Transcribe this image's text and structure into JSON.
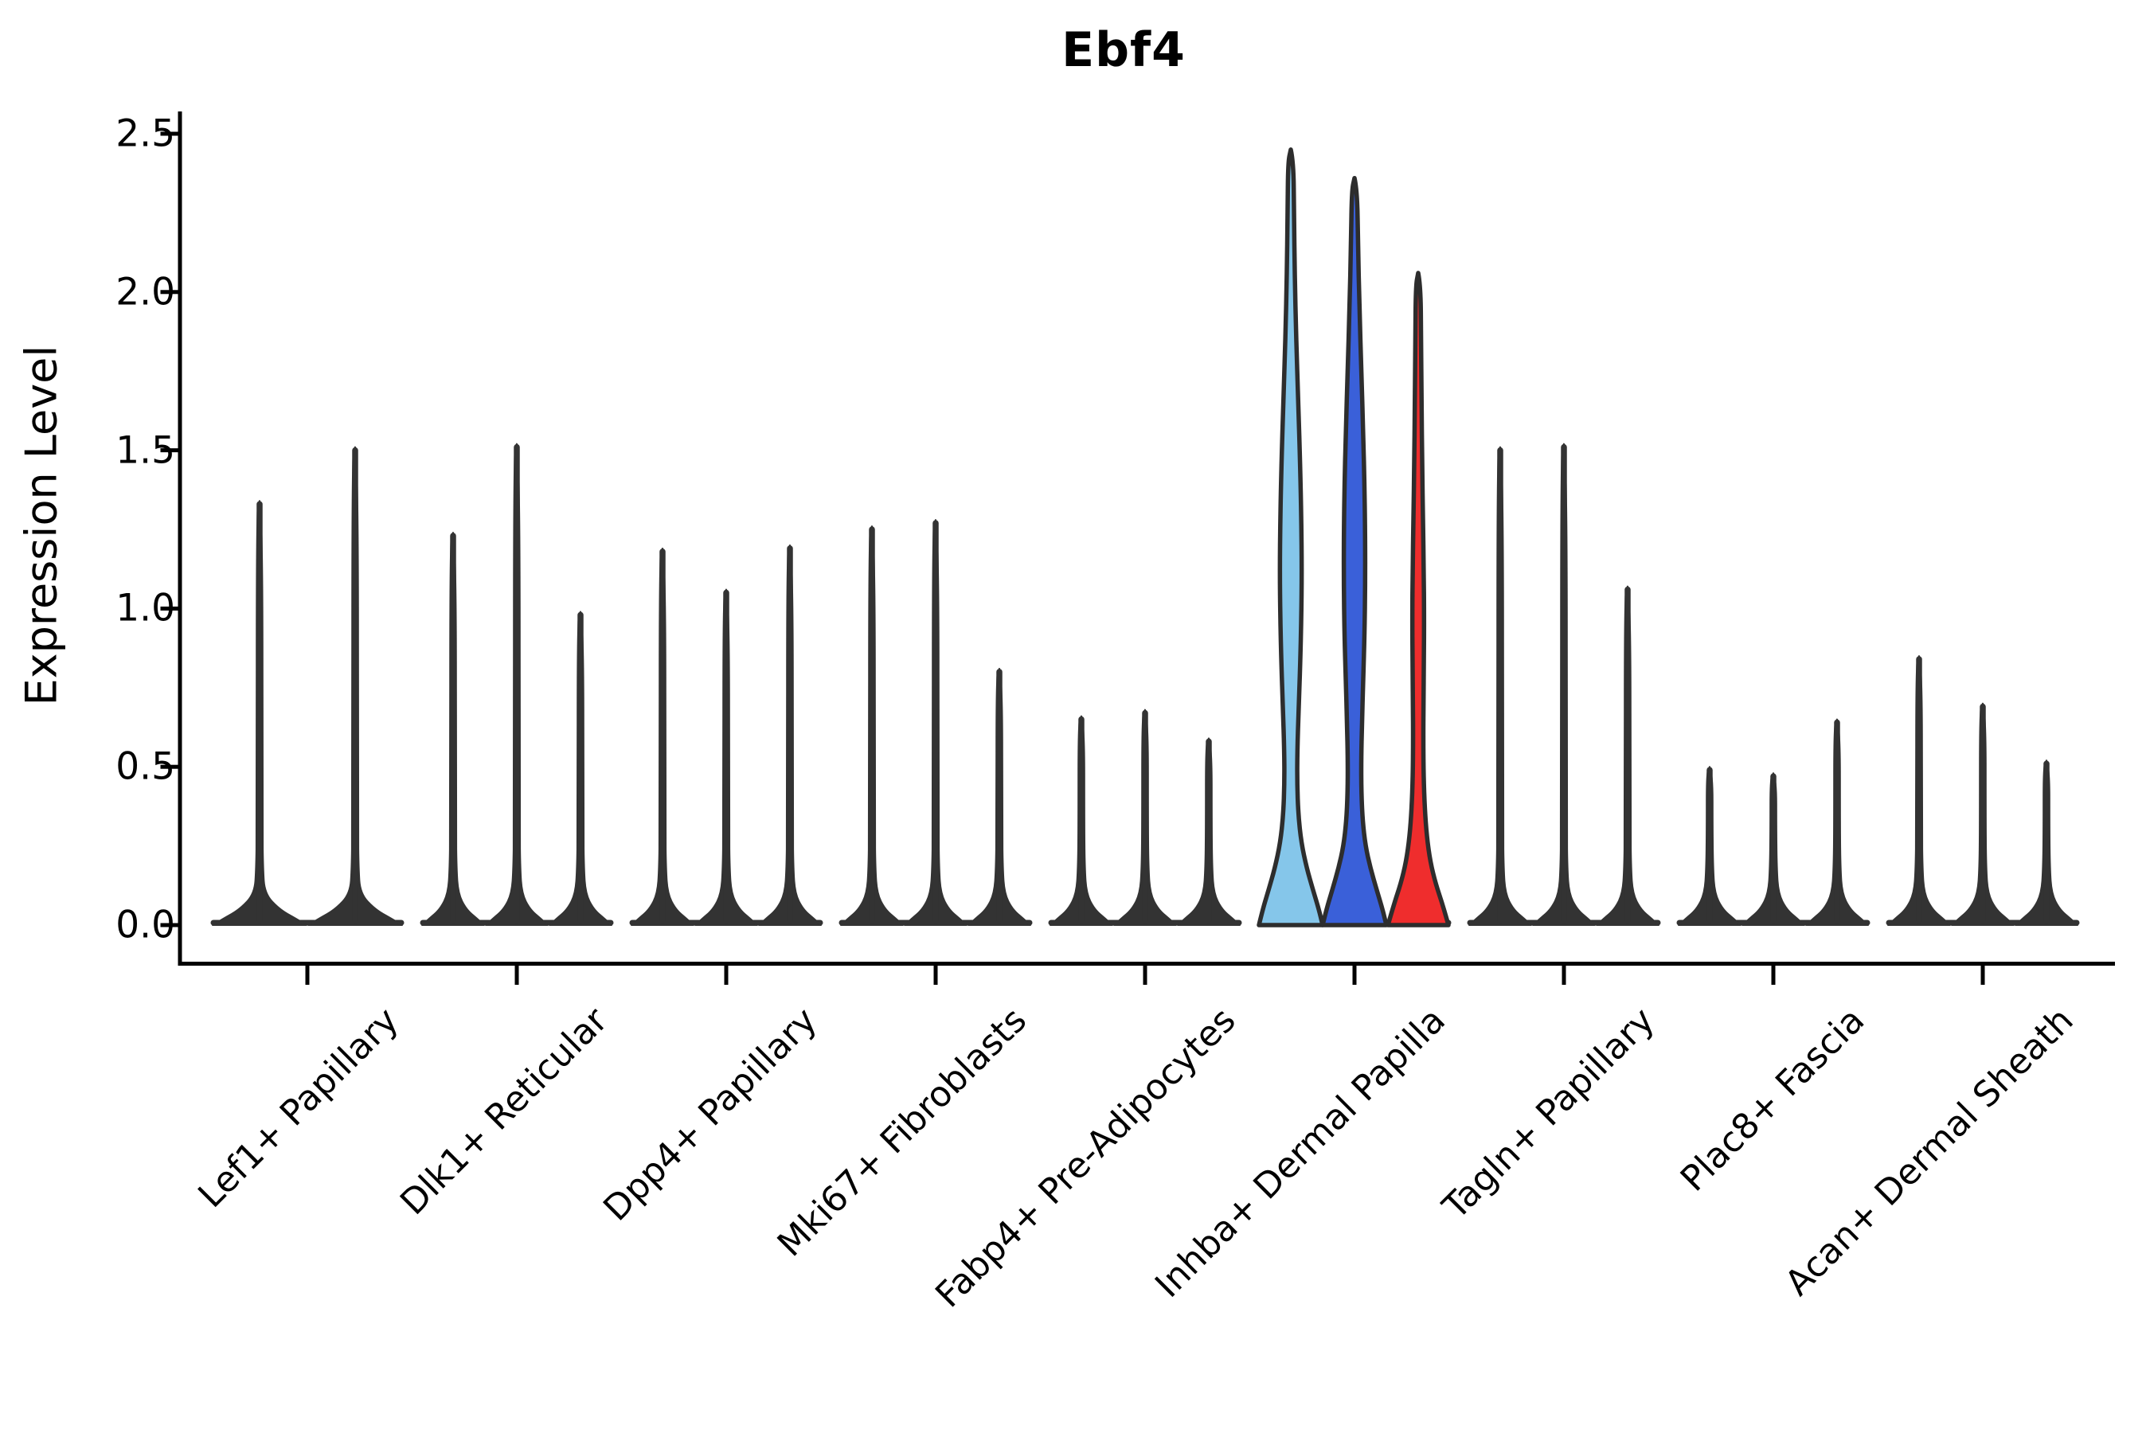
{
  "chart_data": {
    "type": "violin",
    "title": "Ebf4",
    "xlabel": "",
    "ylabel": "Expression Level",
    "ylim": [
      0,
      2.5
    ],
    "yticks": [
      "0.0",
      "0.5",
      "1.0",
      "1.5",
      "2.0",
      "2.5"
    ],
    "grid": false,
    "legend": "none",
    "categories": [
      "Lef1+ Papillary",
      "Dlk1+ Reticular",
      "Dpp4+ Papillary",
      "Mki67+ Fibroblasts",
      "Fabp4+ Pre-Adipocytes",
      "Inhba+ Dermal Papilla",
      "Tagln+ Papillary",
      "Plac8+ Fascia",
      "Acan+ Dermal Sheath"
    ],
    "groups": [
      {
        "category": "Lef1+ Papillary",
        "violins": [
          {
            "max": 1.34
          },
          {
            "max": 1.51
          }
        ]
      },
      {
        "category": "Dlk1+ Reticular",
        "violins": [
          {
            "max": 1.24
          },
          {
            "max": 1.52
          },
          {
            "max": 0.99
          }
        ]
      },
      {
        "category": "Dpp4+ Papillary",
        "violins": [
          {
            "max": 1.19
          },
          {
            "max": 1.06
          },
          {
            "max": 1.2
          }
        ]
      },
      {
        "category": "Mki67+ Fibroblasts",
        "violins": [
          {
            "max": 1.26
          },
          {
            "max": 1.28
          },
          {
            "max": 0.81
          }
        ]
      },
      {
        "category": "Fabp4+ Pre-Adipocytes",
        "violins": [
          {
            "max": 0.66
          },
          {
            "max": 0.68
          },
          {
            "max": 0.59
          }
        ]
      },
      {
        "category": "Inhba+ Dermal Papilla",
        "violins": [
          {
            "max": 2.45,
            "fill": "#85C6EA",
            "shape": [
              [
                2.45,
                0
              ],
              [
                2.41,
                0.085
              ],
              [
                2.25,
                0.1
              ],
              [
                2.05,
                0.125
              ],
              [
                1.85,
                0.17
              ],
              [
                1.65,
                0.235
              ],
              [
                1.45,
                0.295
              ],
              [
                1.28,
                0.33
              ],
              [
                1.12,
                0.345
              ],
              [
                0.97,
                0.33
              ],
              [
                0.82,
                0.295
              ],
              [
                0.68,
                0.245
              ],
              [
                0.55,
                0.205
              ],
              [
                0.45,
                0.2
              ],
              [
                0.35,
                0.235
              ],
              [
                0.26,
                0.33
              ],
              [
                0.18,
                0.5
              ],
              [
                0.11,
                0.7
              ],
              [
                0.05,
                0.88
              ],
              [
                0,
                1.0
              ]
            ]
          },
          {
            "max": 2.36,
            "fill": "#3A60D9",
            "shape": [
              [
                2.36,
                0
              ],
              [
                2.32,
                0.085
              ],
              [
                2.15,
                0.11
              ],
              [
                1.95,
                0.155
              ],
              [
                1.75,
                0.215
              ],
              [
                1.55,
                0.275
              ],
              [
                1.38,
                0.315
              ],
              [
                1.22,
                0.335
              ],
              [
                1.07,
                0.335
              ],
              [
                0.92,
                0.315
              ],
              [
                0.78,
                0.275
              ],
              [
                0.64,
                0.235
              ],
              [
                0.52,
                0.21
              ],
              [
                0.42,
                0.215
              ],
              [
                0.33,
                0.255
              ],
              [
                0.25,
                0.345
              ],
              [
                0.18,
                0.5
              ],
              [
                0.11,
                0.7
              ],
              [
                0.05,
                0.88
              ],
              [
                0,
                1.0
              ]
            ]
          },
          {
            "max": 2.06,
            "fill": "#EF2D2D",
            "shape": [
              [
                2.06,
                0
              ],
              [
                2.02,
                0.075
              ],
              [
                1.85,
                0.09
              ],
              [
                1.65,
                0.105
              ],
              [
                1.45,
                0.125
              ],
              [
                1.28,
                0.15
              ],
              [
                1.12,
                0.175
              ],
              [
                0.98,
                0.185
              ],
              [
                0.84,
                0.18
              ],
              [
                0.7,
                0.165
              ],
              [
                0.58,
                0.16
              ],
              [
                0.47,
                0.17
              ],
              [
                0.37,
                0.205
              ],
              [
                0.28,
                0.27
              ],
              [
                0.2,
                0.38
              ],
              [
                0.13,
                0.55
              ],
              [
                0.07,
                0.75
              ],
              [
                0,
                0.95
              ]
            ]
          }
        ]
      },
      {
        "category": "Tagln+ Papillary",
        "violins": [
          {
            "max": 1.51
          },
          {
            "max": 1.52
          },
          {
            "max": 1.07
          }
        ]
      },
      {
        "category": "Plac8+ Fascia",
        "violins": [
          {
            "max": 0.5
          },
          {
            "max": 0.48
          },
          {
            "max": 0.65
          }
        ]
      },
      {
        "category": "Acan+ Dermal Sheath",
        "violins": [
          {
            "max": 0.85
          },
          {
            "max": 0.7
          },
          {
            "max": 0.52
          }
        ]
      }
    ],
    "colors": {
      "default_violin": "#333333",
      "outline": "#2D2D2D",
      "axis": "#000000",
      "highlight": [
        "#85C6EA",
        "#3A60D9",
        "#EF2D2D"
      ]
    }
  }
}
